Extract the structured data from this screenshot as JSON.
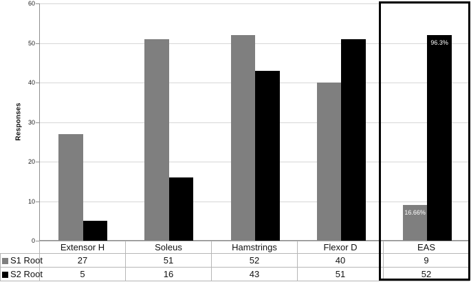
{
  "chart_data": {
    "type": "bar",
    "title": "",
    "ylabel": "Responses",
    "ylim": [
      0,
      60
    ],
    "yticks": [
      0,
      10,
      20,
      30,
      40,
      50,
      60
    ],
    "grid": true,
    "categories": [
      "Extensor H",
      "Soleus",
      "Hamstrings",
      "Flexor D",
      "EAS"
    ],
    "series": [
      {
        "name": "S1 Root",
        "color": "#7f7f7f",
        "values": [
          27,
          51,
          52,
          40,
          9
        ]
      },
      {
        "name": "S2 Root",
        "color": "#000000",
        "values": [
          5,
          16,
          43,
          51,
          52
        ]
      }
    ],
    "annotations": [
      {
        "category": "EAS",
        "series": "S1 Root",
        "text": "16.66%",
        "color": "#ffffff"
      },
      {
        "category": "EAS",
        "series": "S2 Root",
        "text": "96.3%",
        "color": "#ffffff"
      }
    ],
    "highlight_box_category": "EAS",
    "legend_position": "data-table-left",
    "data_table_shown": true
  },
  "colors": {
    "background": "#ffffff",
    "gridline": "#d6d6d6",
    "axis": "#8e8e8e",
    "table_border": "#b5b5b5",
    "highlight_box": "#000000",
    "s1_root_bar": "#7f7f7f",
    "s2_root_bar": "#000000",
    "annotation_text": "#ffffff"
  }
}
